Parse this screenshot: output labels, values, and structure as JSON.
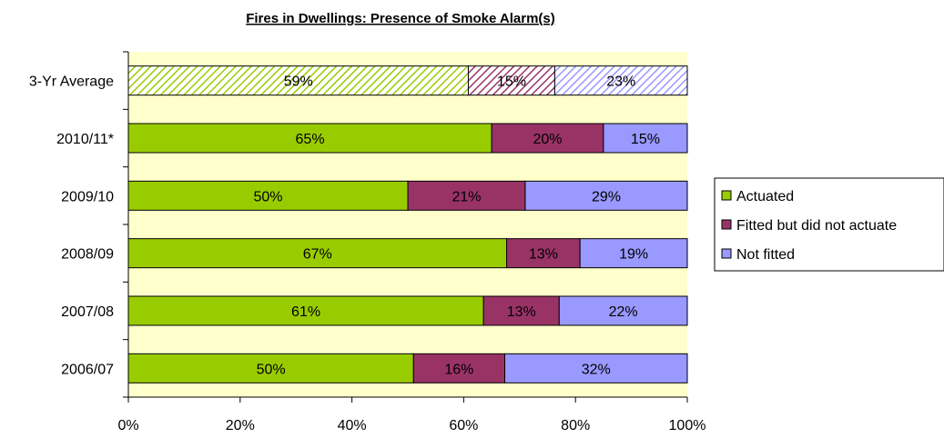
{
  "chart_data": {
    "type": "bar",
    "orientation": "horizontal",
    "stacked": "percent",
    "title": "Fires in Dwellings: Presence of Smoke Alarm(s)",
    "categories": [
      "3-Yr Average",
      "2010/11*",
      "2009/10",
      "2008/09",
      "2007/08",
      "2006/07"
    ],
    "series": [
      {
        "name": "Actuated",
        "color": "#99cc00",
        "values": [
          59,
          65,
          50,
          67,
          61,
          50
        ]
      },
      {
        "name": "Fitted but did not actuate",
        "color": "#993366",
        "values": [
          15,
          20,
          21,
          13,
          13,
          16
        ]
      },
      {
        "name": "Not fitted",
        "color": "#9999ff",
        "values": [
          23,
          15,
          29,
          19,
          22,
          32
        ]
      }
    ],
    "hatched_categories": [
      "3-Yr Average"
    ],
    "x_ticks": [
      "0%",
      "20%",
      "40%",
      "60%",
      "80%",
      "100%"
    ],
    "xlim": [
      0,
      100
    ],
    "plot_background": "#ffffcc",
    "legend_position": "right",
    "grid": false
  }
}
